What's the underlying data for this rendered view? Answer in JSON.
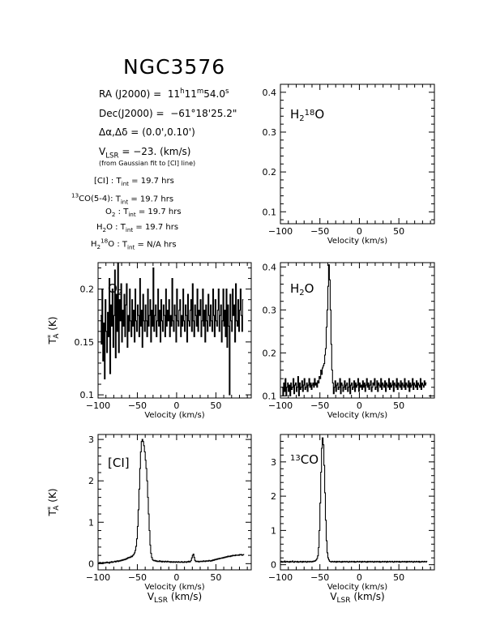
{
  "title": "NGC3576",
  "info": {
    "ra_label": "RA (J2000) =",
    "ra_h": "11",
    "ra_m": "11",
    "ra_s": "54.0",
    "dec_label": "Dec(J2000) =",
    "dec_deg": "−61",
    "dec_min": "18",
    "dec_sec": "25.2",
    "offset_label": "Δα,Δδ =",
    "offset_value": "(0.0',0.10')",
    "vlsr_value": "= −23. (km/s)",
    "note": "(from Gaussian fit to [CI] line)"
  },
  "integration": [
    {
      "line": "[CI]",
      "value": "= 19.7 hrs"
    },
    {
      "line": "13CO(5-4)",
      "value": "= 19.7 hrs"
    },
    {
      "line": "O2",
      "value": "= 19.7 hrs"
    },
    {
      "line": "H2O",
      "value": "= 19.7 hrs"
    },
    {
      "line": "H218O",
      "value": "= N/A hrs"
    }
  ],
  "chart_data": [
    {
      "type": "line",
      "panel": "h2_18o",
      "label": "H2 18O",
      "xlabel": "Velocity (km/s)",
      "ylabel": "",
      "xlim": [
        -100,
        95
      ],
      "ylim": [
        0.07,
        0.42
      ],
      "xticks": [
        -100,
        -50,
        0,
        50
      ],
      "yticks": [
        0.1,
        0.2,
        0.3,
        0.4
      ],
      "series": []
    },
    {
      "type": "line",
      "panel": "o2",
      "label": "O2",
      "xlabel": "Velocity (km/s)",
      "ylabel": "T*A (K)",
      "xlim": [
        -100,
        95
      ],
      "ylim": [
        0.097,
        0.225
      ],
      "xticks": [
        -100,
        -50,
        0,
        50
      ],
      "yticks": [
        0.1,
        0.15,
        0.2
      ],
      "series": [
        {
          "x_start": -97,
          "x_step": 1.0,
          "values": [
            0.175,
            0.148,
            0.2,
            0.132,
            0.168,
            0.115,
            0.19,
            0.16,
            0.14,
            0.178,
            0.155,
            0.21,
            0.12,
            0.185,
            0.165,
            0.2,
            0.145,
            0.175,
            0.218,
            0.135,
            0.195,
            0.16,
            0.225,
            0.14,
            0.19,
            0.17,
            0.205,
            0.15,
            0.18,
            0.165,
            0.195,
            0.155,
            0.185,
            0.205,
            0.145,
            0.175,
            0.16,
            0.2,
            0.17,
            0.155,
            0.19,
            0.165,
            0.18,
            0.15,
            0.2,
            0.17,
            0.16,
            0.185,
            0.175,
            0.155,
            0.21,
            0.165,
            0.18,
            0.145,
            0.195,
            0.17,
            0.16,
            0.185,
            0.17,
            0.155,
            0.2,
            0.165,
            0.175,
            0.19,
            0.15,
            0.18,
            0.165,
            0.22,
            0.16,
            0.175,
            0.185,
            0.155,
            0.17,
            0.2,
            0.165,
            0.18,
            0.15,
            0.19,
            0.17,
            0.16,
            0.185,
            0.175,
            0.155,
            0.2,
            0.165,
            0.18,
            0.17,
            0.19,
            0.155,
            0.175,
            0.165,
            0.21,
            0.17,
            0.16,
            0.185,
            0.175,
            0.15,
            0.2,
            0.17,
            0.165,
            0.18,
            0.19,
            0.155,
            0.175,
            0.165,
            0.2,
            0.17,
            0.16,
            0.185,
            0.175,
            0.15,
            0.195,
            0.17,
            0.165,
            0.18,
            0.19,
            0.16,
            0.205,
            0.17,
            0.155,
            0.185,
            0.175,
            0.165,
            0.2,
            0.16,
            0.18,
            0.175,
            0.19,
            0.155,
            0.17,
            0.2,
            0.165,
            0.18,
            0.15,
            0.185,
            0.17,
            0.16,
            0.195,
            0.175,
            0.165,
            0.185,
            0.17,
            0.16,
            0.2,
            0.175,
            0.155,
            0.19,
            0.17,
            0.165,
            0.18,
            0.2,
            0.16,
            0.175,
            0.185,
            0.15,
            0.17,
            0.2,
            0.165,
            0.18,
            0.155,
            0.2,
            0.145,
            0.185,
            0.165,
            0.1,
            0.195,
            0.17,
            0.16,
            0.2,
            0.175,
            0.185,
            0.15,
            0.205,
            0.17,
            0.165,
            0.19,
            0.16,
            0.18,
            0.2,
            0.175,
            0.16,
            0.19
          ]
        }
      ]
    },
    {
      "type": "line",
      "panel": "h2o",
      "label": "H2O",
      "xlabel": "Velocity (km/s)",
      "ylabel": "",
      "xlim": [
        -100,
        95
      ],
      "ylim": [
        0.095,
        0.41
      ],
      "xticks": [
        -100,
        -50,
        0,
        50
      ],
      "yticks": [
        0.1,
        0.2,
        0.3,
        0.4
      ],
      "series": [
        {
          "x_start": -98,
          "x_step": 1.0,
          "values": [
            0.12,
            0.1,
            0.13,
            0.11,
            0.14,
            0.1,
            0.12,
            0.13,
            0.11,
            0.125,
            0.1,
            0.13,
            0.115,
            0.12,
            0.14,
            0.105,
            0.125,
            0.13,
            0.11,
            0.12,
            0.145,
            0.1,
            0.13,
            0.115,
            0.12,
            0.135,
            0.11,
            0.125,
            0.14,
            0.115,
            0.12,
            0.13,
            0.11,
            0.125,
            0.14,
            0.12,
            0.13,
            0.115,
            0.125,
            0.13,
            0.12,
            0.14,
            0.125,
            0.13,
            0.12,
            0.135,
            0.13,
            0.145,
            0.14,
            0.16,
            0.15,
            0.165,
            0.17,
            0.175,
            0.195,
            0.21,
            0.26,
            0.3,
            0.355,
            0.405,
            0.37,
            0.3,
            0.22,
            0.16,
            0.13,
            0.105,
            0.12,
            0.135,
            0.11,
            0.125,
            0.13,
            0.115,
            0.12,
            0.14,
            0.105,
            0.13,
            0.125,
            0.11,
            0.12,
            0.135,
            0.115,
            0.125,
            0.13,
            0.11,
            0.12,
            0.14,
            0.105,
            0.125,
            0.13,
            0.115,
            0.12,
            0.135,
            0.11,
            0.13,
            0.12,
            0.125,
            0.14,
            0.11,
            0.13,
            0.12,
            0.125,
            0.115,
            0.135,
            0.12,
            0.13,
            0.11,
            0.125,
            0.14,
            0.12,
            0.13,
            0.115,
            0.125,
            0.135,
            0.11,
            0.12,
            0.13,
            0.125,
            0.14,
            0.115,
            0.12,
            0.135,
            0.11,
            0.13,
            0.125,
            0.12,
            0.14,
            0.115,
            0.13,
            0.125,
            0.12,
            0.135,
            0.11,
            0.13,
            0.125,
            0.12,
            0.14,
            0.115,
            0.13,
            0.12,
            0.125,
            0.135,
            0.11,
            0.13,
            0.125,
            0.12,
            0.14,
            0.115,
            0.13,
            0.125,
            0.12,
            0.135,
            0.115,
            0.13,
            0.125,
            0.12,
            0.14,
            0.115,
            0.13,
            0.125,
            0.12,
            0.135,
            0.11,
            0.13,
            0.12,
            0.125,
            0.14,
            0.115,
            0.13,
            0.125,
            0.12,
            0.135,
            0.115,
            0.13,
            0.125,
            0.12,
            0.14,
            0.115,
            0.13,
            0.125,
            0.12,
            0.135,
            0.125,
            0.13
          ]
        }
      ]
    },
    {
      "type": "line",
      "panel": "ci",
      "label": "[CI]",
      "xlabel": "Velocity (km/s)",
      "ylabel": "T*A (K)",
      "xlim": [
        -100,
        95
      ],
      "ylim": [
        -0.15,
        3.12
      ],
      "xticks": [
        -100,
        -50,
        0,
        50
      ],
      "yticks": [
        0,
        1,
        2,
        3
      ],
      "series": [
        {
          "x_start": -100,
          "x_step": 1.0,
          "values": [
            0.02,
            0.0,
            0.03,
            0.01,
            0.02,
            0.0,
            0.03,
            0.02,
            0.01,
            0.03,
            0.02,
            0.04,
            0.02,
            0.03,
            0.01,
            0.04,
            0.03,
            0.05,
            0.03,
            0.04,
            0.05,
            0.06,
            0.04,
            0.06,
            0.07,
            0.05,
            0.07,
            0.06,
            0.08,
            0.07,
            0.09,
            0.08,
            0.1,
            0.09,
            0.11,
            0.1,
            0.13,
            0.12,
            0.15,
            0.14,
            0.16,
            0.15,
            0.18,
            0.17,
            0.2,
            0.22,
            0.26,
            0.32,
            0.42,
            0.6,
            0.9,
            1.3,
            1.8,
            2.3,
            2.7,
            2.95,
            3.0,
            2.95,
            2.85,
            2.7,
            2.5,
            2.3,
            2.0,
            1.6,
            1.2,
            0.8,
            0.45,
            0.25,
            0.15,
            0.1,
            0.08,
            0.07,
            0.08,
            0.06,
            0.07,
            0.05,
            0.06,
            0.05,
            0.07,
            0.05,
            0.06,
            0.04,
            0.06,
            0.05,
            0.04,
            0.06,
            0.05,
            0.04,
            0.06,
            0.05,
            0.04,
            0.05,
            0.03,
            0.05,
            0.04,
            0.03,
            0.05,
            0.04,
            0.03,
            0.05,
            0.04,
            0.03,
            0.05,
            0.04,
            0.03,
            0.04,
            0.05,
            0.03,
            0.04,
            0.03,
            0.05,
            0.04,
            0.03,
            0.05,
            0.04,
            0.06,
            0.04,
            0.05,
            0.08,
            0.14,
            0.2,
            0.23,
            0.15,
            0.08,
            0.05,
            0.06,
            0.05,
            0.06,
            0.04,
            0.05,
            0.06,
            0.05,
            0.06,
            0.05,
            0.07,
            0.06,
            0.05,
            0.07,
            0.06,
            0.07,
            0.06,
            0.08,
            0.07,
            0.06,
            0.08,
            0.07,
            0.09,
            0.08,
            0.1,
            0.09,
            0.11,
            0.1,
            0.12,
            0.11,
            0.13,
            0.12,
            0.13,
            0.14,
            0.13,
            0.15,
            0.14,
            0.16,
            0.15,
            0.17,
            0.16,
            0.18,
            0.17,
            0.18,
            0.17,
            0.19,
            0.18,
            0.2,
            0.19,
            0.2,
            0.19,
            0.21,
            0.2,
            0.2,
            0.21,
            0.2,
            0.22,
            0.21,
            0.22,
            0.2,
            0.21,
            0.22
          ]
        }
      ]
    },
    {
      "type": "line",
      "panel": "13co",
      "label": "13CO",
      "xlabel": "Velocity (km/s)",
      "ylabel": "",
      "xlim": [
        -100,
        95
      ],
      "ylim": [
        -0.15,
        3.8
      ],
      "xticks": [
        -100,
        -50,
        0,
        50
      ],
      "yticks": [
        0,
        1,
        2,
        3
      ],
      "series": [
        {
          "x_start": -100,
          "x_step": 1.0,
          "values": [
            0.08,
            0.1,
            0.07,
            0.09,
            0.08,
            0.11,
            0.07,
            0.09,
            0.1,
            0.08,
            0.09,
            0.07,
            0.1,
            0.08,
            0.09,
            0.11,
            0.08,
            0.07,
            0.1,
            0.09,
            0.08,
            0.1,
            0.07,
            0.09,
            0.08,
            0.1,
            0.09,
            0.07,
            0.1,
            0.08,
            0.09,
            0.1,
            0.08,
            0.07,
            0.1,
            0.09,
            0.08,
            0.1,
            0.09,
            0.08,
            0.1,
            0.09,
            0.11,
            0.1,
            0.12,
            0.14,
            0.18,
            0.26,
            0.5,
            1.0,
            1.8,
            2.7,
            3.4,
            3.7,
            3.5,
            2.9,
            2.1,
            1.3,
            0.7,
            0.35,
            0.2,
            0.14,
            0.1,
            0.09,
            0.08,
            0.1,
            0.09,
            0.08,
            0.1,
            0.09,
            0.07,
            0.1,
            0.08,
            0.09,
            0.1,
            0.08,
            0.09,
            0.07,
            0.1,
            0.08,
            0.09,
            0.1,
            0.08,
            0.09,
            0.1,
            0.08,
            0.07,
            0.1,
            0.09,
            0.08,
            0.1,
            0.09,
            0.08,
            0.1,
            0.07,
            0.09,
            0.08,
            0.1,
            0.09,
            0.08,
            0.1,
            0.09,
            0.07,
            0.1,
            0.08,
            0.09,
            0.1,
            0.08,
            0.09,
            0.07,
            0.1,
            0.08,
            0.09,
            0.1,
            0.08,
            0.09,
            0.1,
            0.08,
            0.07,
            0.1,
            0.09,
            0.08,
            0.1,
            0.09,
            0.08,
            0.1,
            0.07,
            0.09,
            0.08,
            0.1,
            0.09,
            0.08,
            0.1,
            0.09,
            0.07,
            0.1,
            0.08,
            0.09,
            0.1,
            0.08,
            0.09,
            0.1,
            0.08,
            0.07,
            0.1,
            0.09,
            0.08,
            0.1,
            0.09,
            0.08,
            0.1,
            0.07,
            0.09,
            0.08,
            0.1,
            0.09,
            0.08,
            0.1,
            0.09,
            0.07,
            0.1,
            0.08,
            0.09,
            0.1,
            0.08,
            0.09,
            0.1,
            0.08,
            0.07,
            0.1,
            0.09,
            0.08,
            0.1,
            0.09,
            0.08,
            0.1,
            0.07,
            0.09,
            0.08,
            0.1,
            0.09,
            0.08,
            0.1,
            0.09,
            0.08,
            0.1
          ]
        }
      ]
    }
  ],
  "bottom_xlabel": "VLSR (km/s)"
}
